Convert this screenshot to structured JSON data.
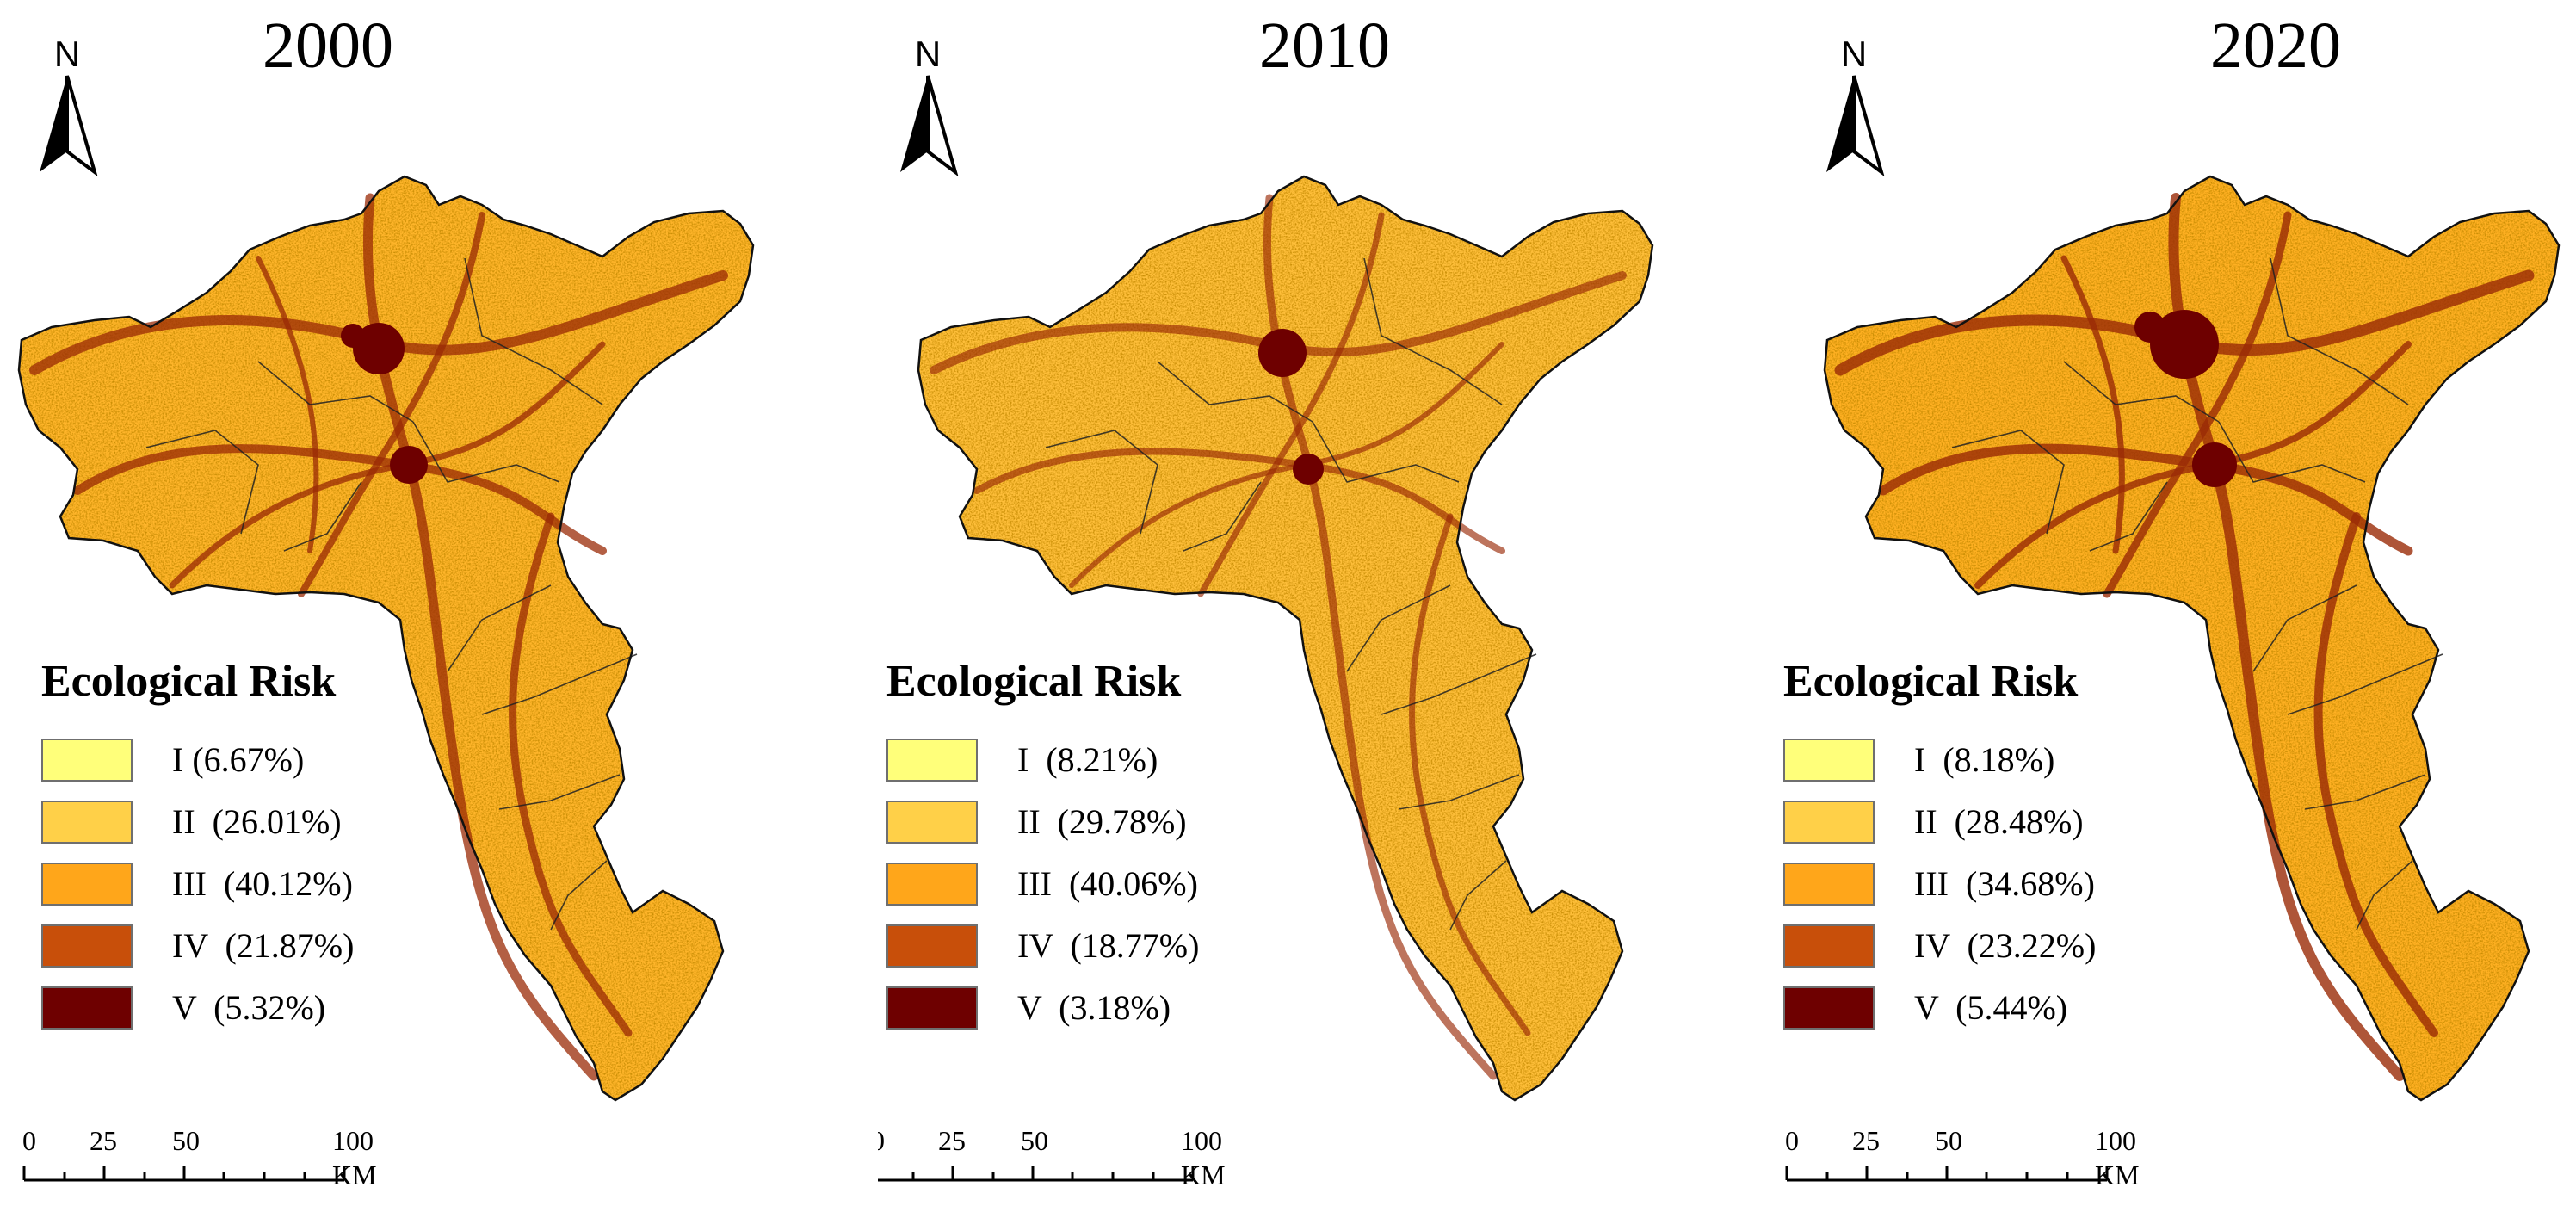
{
  "colors": {
    "I": "#ffff7a",
    "II": "#ffd048",
    "III": "#ffa61a",
    "IV": "#c84f0a",
    "V": "#6e0000"
  },
  "north_arrow": {
    "label": "N"
  },
  "legend_title": "Ecological Risk",
  "scale_bar": {
    "ticks": [
      "0",
      "25",
      "50",
      "100 KM"
    ]
  },
  "panels": [
    {
      "year": "2000",
      "classes": [
        {
          "name": "I",
          "label": "I (6.67%)"
        },
        {
          "name": "II",
          "label": "II  (26.01%)"
        },
        {
          "name": "III",
          "label": "III  (40.12%)"
        },
        {
          "name": "IV",
          "label": "IV  (21.87%)"
        },
        {
          "name": "V",
          "label": "V  (5.32%)"
        }
      ]
    },
    {
      "year": "2010",
      "classes": [
        {
          "name": "I",
          "label": "I  (8.21%)"
        },
        {
          "name": "II",
          "label": "II  (29.78%)"
        },
        {
          "name": "III",
          "label": "III  (40.06%)"
        },
        {
          "name": "IV",
          "label": "IV  (18.77%)"
        },
        {
          "name": "V",
          "label": "V  (3.18%)"
        }
      ]
    },
    {
      "year": "2020",
      "classes": [
        {
          "name": "I",
          "label": "I  (8.18%)"
        },
        {
          "name": "II",
          "label": "II  (28.48%)"
        },
        {
          "name": "III",
          "label": "III  (34.68%)"
        },
        {
          "name": "IV",
          "label": "IV  (23.22%)"
        },
        {
          "name": "V",
          "label": "V  (5.44%)"
        }
      ]
    }
  ]
}
